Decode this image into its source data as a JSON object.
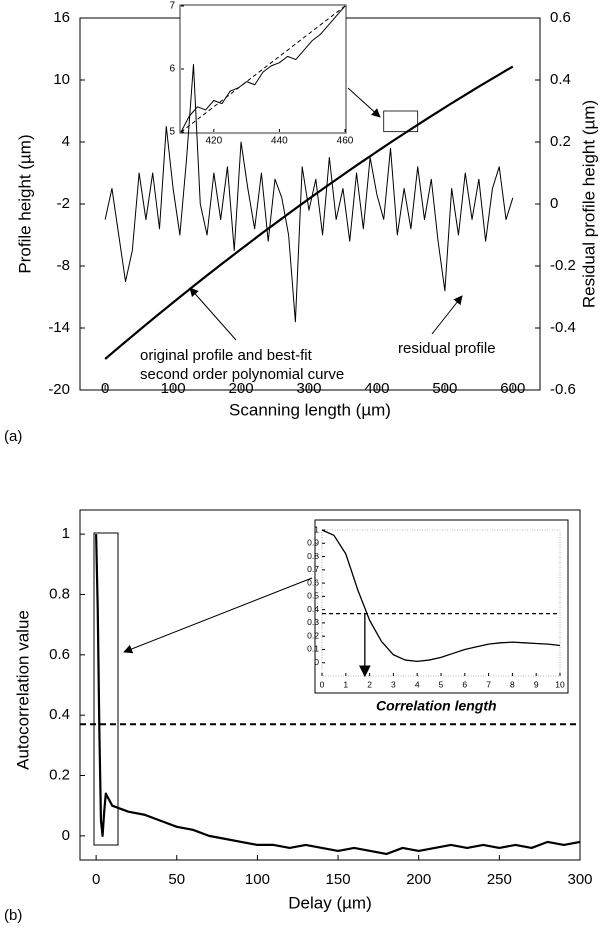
{
  "chart_data": [
    {
      "type": "line",
      "panel_label": "(a)",
      "x_label": "Scanning length (µm)",
      "y_label": "Profile height (µm)",
      "y2_label": "Residual profile height (µm)",
      "xlim": [
        -37,
        640
      ],
      "xticks": [
        0,
        100,
        200,
        300,
        400,
        500,
        600
      ],
      "ylim": [
        -20,
        16
      ],
      "yticks": [
        -20,
        -14,
        -8,
        -2,
        4,
        10,
        16
      ],
      "y2lim": [
        -0.6,
        0.6
      ],
      "y2ticks": [
        -0.6,
        -0.4,
        -0.2,
        0,
        0.2,
        0.4,
        0.6
      ],
      "x": [
        0,
        10,
        20,
        30,
        40,
        50,
        60,
        70,
        80,
        90,
        100,
        110,
        120,
        130,
        140,
        150,
        160,
        170,
        180,
        190,
        200,
        210,
        220,
        230,
        240,
        250,
        260,
        270,
        280,
        290,
        300,
        310,
        320,
        330,
        340,
        350,
        360,
        370,
        380,
        390,
        400,
        410,
        420,
        430,
        440,
        450,
        460,
        470,
        480,
        490,
        500,
        510,
        520,
        530,
        540,
        550,
        560,
        570,
        580,
        590,
        600
      ],
      "series": [
        {
          "color": "#000000",
          "values": [
            -17.0,
            -16.44,
            -15.88,
            -15.33,
            -14.78,
            -14.23,
            -13.68,
            -13.14,
            -12.6,
            -12.07,
            -11.53,
            -11.0,
            -10.48,
            -9.95,
            -9.43,
            -8.91,
            -8.4,
            -7.88,
            -7.38,
            -6.87,
            -6.37,
            -5.87,
            -5.37,
            -4.87,
            -4.38,
            -3.9,
            -3.41,
            -2.93,
            -2.45,
            -1.97,
            -1.5,
            -1.03,
            -0.56,
            -0.1,
            0.36,
            0.82,
            1.28,
            1.73,
            2.18,
            2.62,
            3.07,
            3.51,
            3.95,
            4.38,
            4.81,
            5.24,
            5.66,
            6.09,
            6.51,
            6.92,
            7.34,
            7.75,
            8.15,
            8.56,
            8.96,
            9.36,
            9.75,
            10.14,
            10.53,
            10.92,
            11.3
          ]
        },
        {
          "color": "#000000",
          "axis": "y2",
          "values": [
            -0.05,
            0.05,
            -0.1,
            -0.25,
            -0.15,
            0.1,
            -0.05,
            0.1,
            -0.08,
            0.25,
            0.05,
            -0.1,
            0.15,
            0.45,
            0.0,
            -0.1,
            0.1,
            -0.05,
            0.12,
            -0.15,
            0.2,
            0.05,
            -0.08,
            0.1,
            -0.12,
            0.08,
            0.02,
            -0.1,
            -0.38,
            0.12,
            -0.02,
            0.08,
            -0.1,
            0.15,
            -0.05,
            0.05,
            -0.12,
            0.1,
            -0.08,
            0.15,
            0.03,
            -0.05,
            0.18,
            -0.1,
            0.05,
            -0.08,
            0.12,
            -0.05,
            0.08,
            -0.12,
            -0.28,
            0.05,
            -0.1,
            0.1,
            -0.05,
            0.08,
            -0.12,
            0.05,
            0.12,
            -0.05,
            0.02
          ]
        }
      ],
      "annotations": [
        {
          "text": [
            "original profile and best-fit",
            "second order polynomial curve"
          ]
        },
        {
          "text": "residual profile"
        }
      ],
      "inset": {
        "type": "line",
        "xlim": [
          410,
          460
        ],
        "xticks": [
          420,
          440,
          460
        ],
        "ylim": [
          5,
          7
        ],
        "yticks": [
          5,
          6,
          7
        ],
        "x": [
          410,
          412.5,
          415,
          417.5,
          420,
          422.5,
          425,
          427.5,
          430,
          432.5,
          435,
          437.5,
          440,
          442.5,
          445,
          447.5,
          450,
          452.5,
          455,
          457.5,
          460
        ],
        "series": [
          {
            "color": "#000000",
            "values": [
              5.0,
              5.25,
              5.4,
              5.35,
              5.5,
              5.45,
              5.65,
              5.7,
              5.8,
              5.75,
              5.95,
              6.05,
              6.1,
              6.2,
              6.15,
              6.3,
              6.45,
              6.55,
              6.7,
              6.85,
              7.0
            ]
          },
          {
            "color": "#000000",
            "dashed": true,
            "values": [
              5.0,
              5.1,
              5.2,
              5.3,
              5.4,
              5.5,
              5.6,
              5.7,
              5.8,
              5.9,
              6.0,
              6.1,
              6.2,
              6.3,
              6.4,
              6.5,
              6.6,
              6.7,
              6.8,
              6.9,
              7.0
            ]
          }
        ]
      }
    },
    {
      "type": "line",
      "panel_label": "(b)",
      "x_label": "Delay (µm)",
      "y_label": "Autocorrelation value",
      "xlim": [
        -10,
        300
      ],
      "xticks": [
        0,
        50,
        100,
        150,
        200,
        250,
        300
      ],
      "ylim": [
        -0.08,
        1.08
      ],
      "yticks": [
        0,
        0.2,
        0.4,
        0.6,
        0.8,
        1
      ],
      "threshold": 0.37,
      "x": [
        0,
        1,
        2,
        3,
        4,
        5,
        6,
        8,
        10,
        15,
        20,
        30,
        40,
        50,
        60,
        70,
        80,
        90,
        100,
        110,
        120,
        130,
        140,
        150,
        160,
        170,
        180,
        190,
        200,
        210,
        220,
        230,
        240,
        250,
        260,
        270,
        280,
        290,
        300
      ],
      "series": [
        {
          "color": "#000000",
          "values": [
            1,
            0.75,
            0.35,
            0.05,
            0.0,
            0.08,
            0.14,
            0.12,
            0.1,
            0.09,
            0.08,
            0.07,
            0.05,
            0.03,
            0.02,
            0.0,
            -0.01,
            -0.02,
            -0.03,
            -0.03,
            -0.04,
            -0.03,
            -0.04,
            -0.05,
            -0.04,
            -0.05,
            -0.06,
            -0.04,
            -0.05,
            -0.04,
            -0.03,
            -0.04,
            -0.03,
            -0.04,
            -0.03,
            -0.04,
            -0.02,
            -0.03,
            -0.02
          ]
        }
      ],
      "inset": {
        "type": "line",
        "annotation": "Correlation length",
        "correlation_length": 1.8,
        "xlim": [
          0,
          10
        ],
        "xticks": [
          0,
          1,
          2,
          3,
          4,
          5,
          6,
          7,
          8,
          9,
          10
        ],
        "ylim": [
          -0.1,
          1
        ],
        "yticks": [
          0,
          0.1,
          0.2,
          0.3,
          0.4,
          0.5,
          0.6,
          0.7,
          0.8,
          0.9,
          1
        ],
        "threshold": 0.37,
        "x": [
          0,
          0.5,
          1,
          1.5,
          2,
          2.5,
          3,
          3.5,
          4,
          4.5,
          5,
          5.5,
          6,
          6.5,
          7,
          7.5,
          8,
          8.5,
          9,
          9.5,
          10
        ],
        "series": [
          {
            "color": "#000000",
            "values": [
              1,
              0.96,
              0.82,
              0.55,
              0.32,
              0.16,
              0.06,
              0.02,
              0.01,
              0.02,
              0.04,
              0.07,
              0.1,
              0.12,
              0.14,
              0.15,
              0.155,
              0.15,
              0.145,
              0.14,
              0.13
            ]
          }
        ]
      }
    }
  ]
}
